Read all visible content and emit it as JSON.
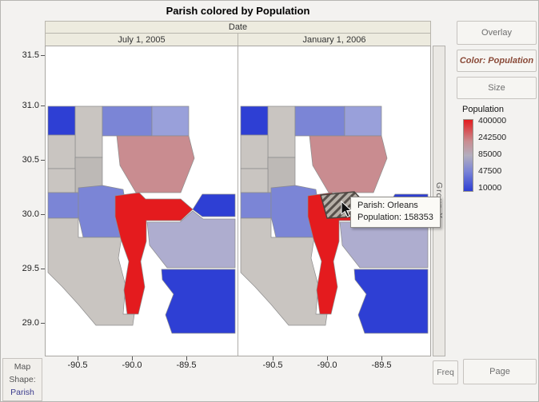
{
  "title": "Parish colored by Population",
  "facet": {
    "header": "Date",
    "panels": [
      {
        "label": "July 1, 2005"
      },
      {
        "label": "January 1, 2006"
      }
    ]
  },
  "y_axis": {
    "ticks": [
      "31.5",
      "31.0",
      "30.5",
      "30.0",
      "29.5",
      "29.0"
    ]
  },
  "x_axis": {
    "ticks": [
      "-90.5",
      "-90.0",
      "-89.5"
    ]
  },
  "group_x": {
    "label": "Group X"
  },
  "controls": {
    "overlay": "Overlay",
    "color": "Color: Population",
    "size": "Size",
    "freq": "Freq",
    "page": "Page"
  },
  "legend": {
    "title": "Population",
    "ticks": [
      "400000",
      "242500",
      "85000",
      "47500",
      "10000"
    ]
  },
  "map_shape": {
    "line1": "Map",
    "line2": "Shape:",
    "line3": "Parish"
  },
  "tooltip": {
    "parish": "Parish: Orleans",
    "population": "Population: 158353"
  },
  "palette": {
    "red": "#e41b1e",
    "rose": "#c98c90",
    "lavender": "#aeadcf",
    "slate": "#7b85d6",
    "slate_light": "#99a0da",
    "blue": "#2e3fd4",
    "gray": "#c9c5c1",
    "gray_dark": "#bdb9b6",
    "mid_neutral": "#b3aebe",
    "hatch_bg": "#b7b0a8",
    "hatch_stripe": "#57504b"
  },
  "chart_data": {
    "type": "heatmap",
    "title": "Parish colored by Population",
    "subtype": "choropleth-map",
    "facet_variable": "Date",
    "facets": [
      "July 1, 2005",
      "January 1, 2006"
    ],
    "x_ticks": [
      -90.5,
      -90.0,
      -89.5
    ],
    "y_ticks": [
      31.5,
      31.0,
      30.5,
      30.0,
      29.5,
      29.0
    ],
    "legend": {
      "title": "Population",
      "scale": [
        400000,
        242500,
        85000,
        47500,
        10000
      ],
      "high_color": "#e41b1e",
      "low_color": "#2e3fd4"
    },
    "map_shape_variable": "Parish",
    "highlighted": {
      "parish": "Orleans",
      "population": 158353,
      "facet": "January 1, 2006"
    }
  }
}
